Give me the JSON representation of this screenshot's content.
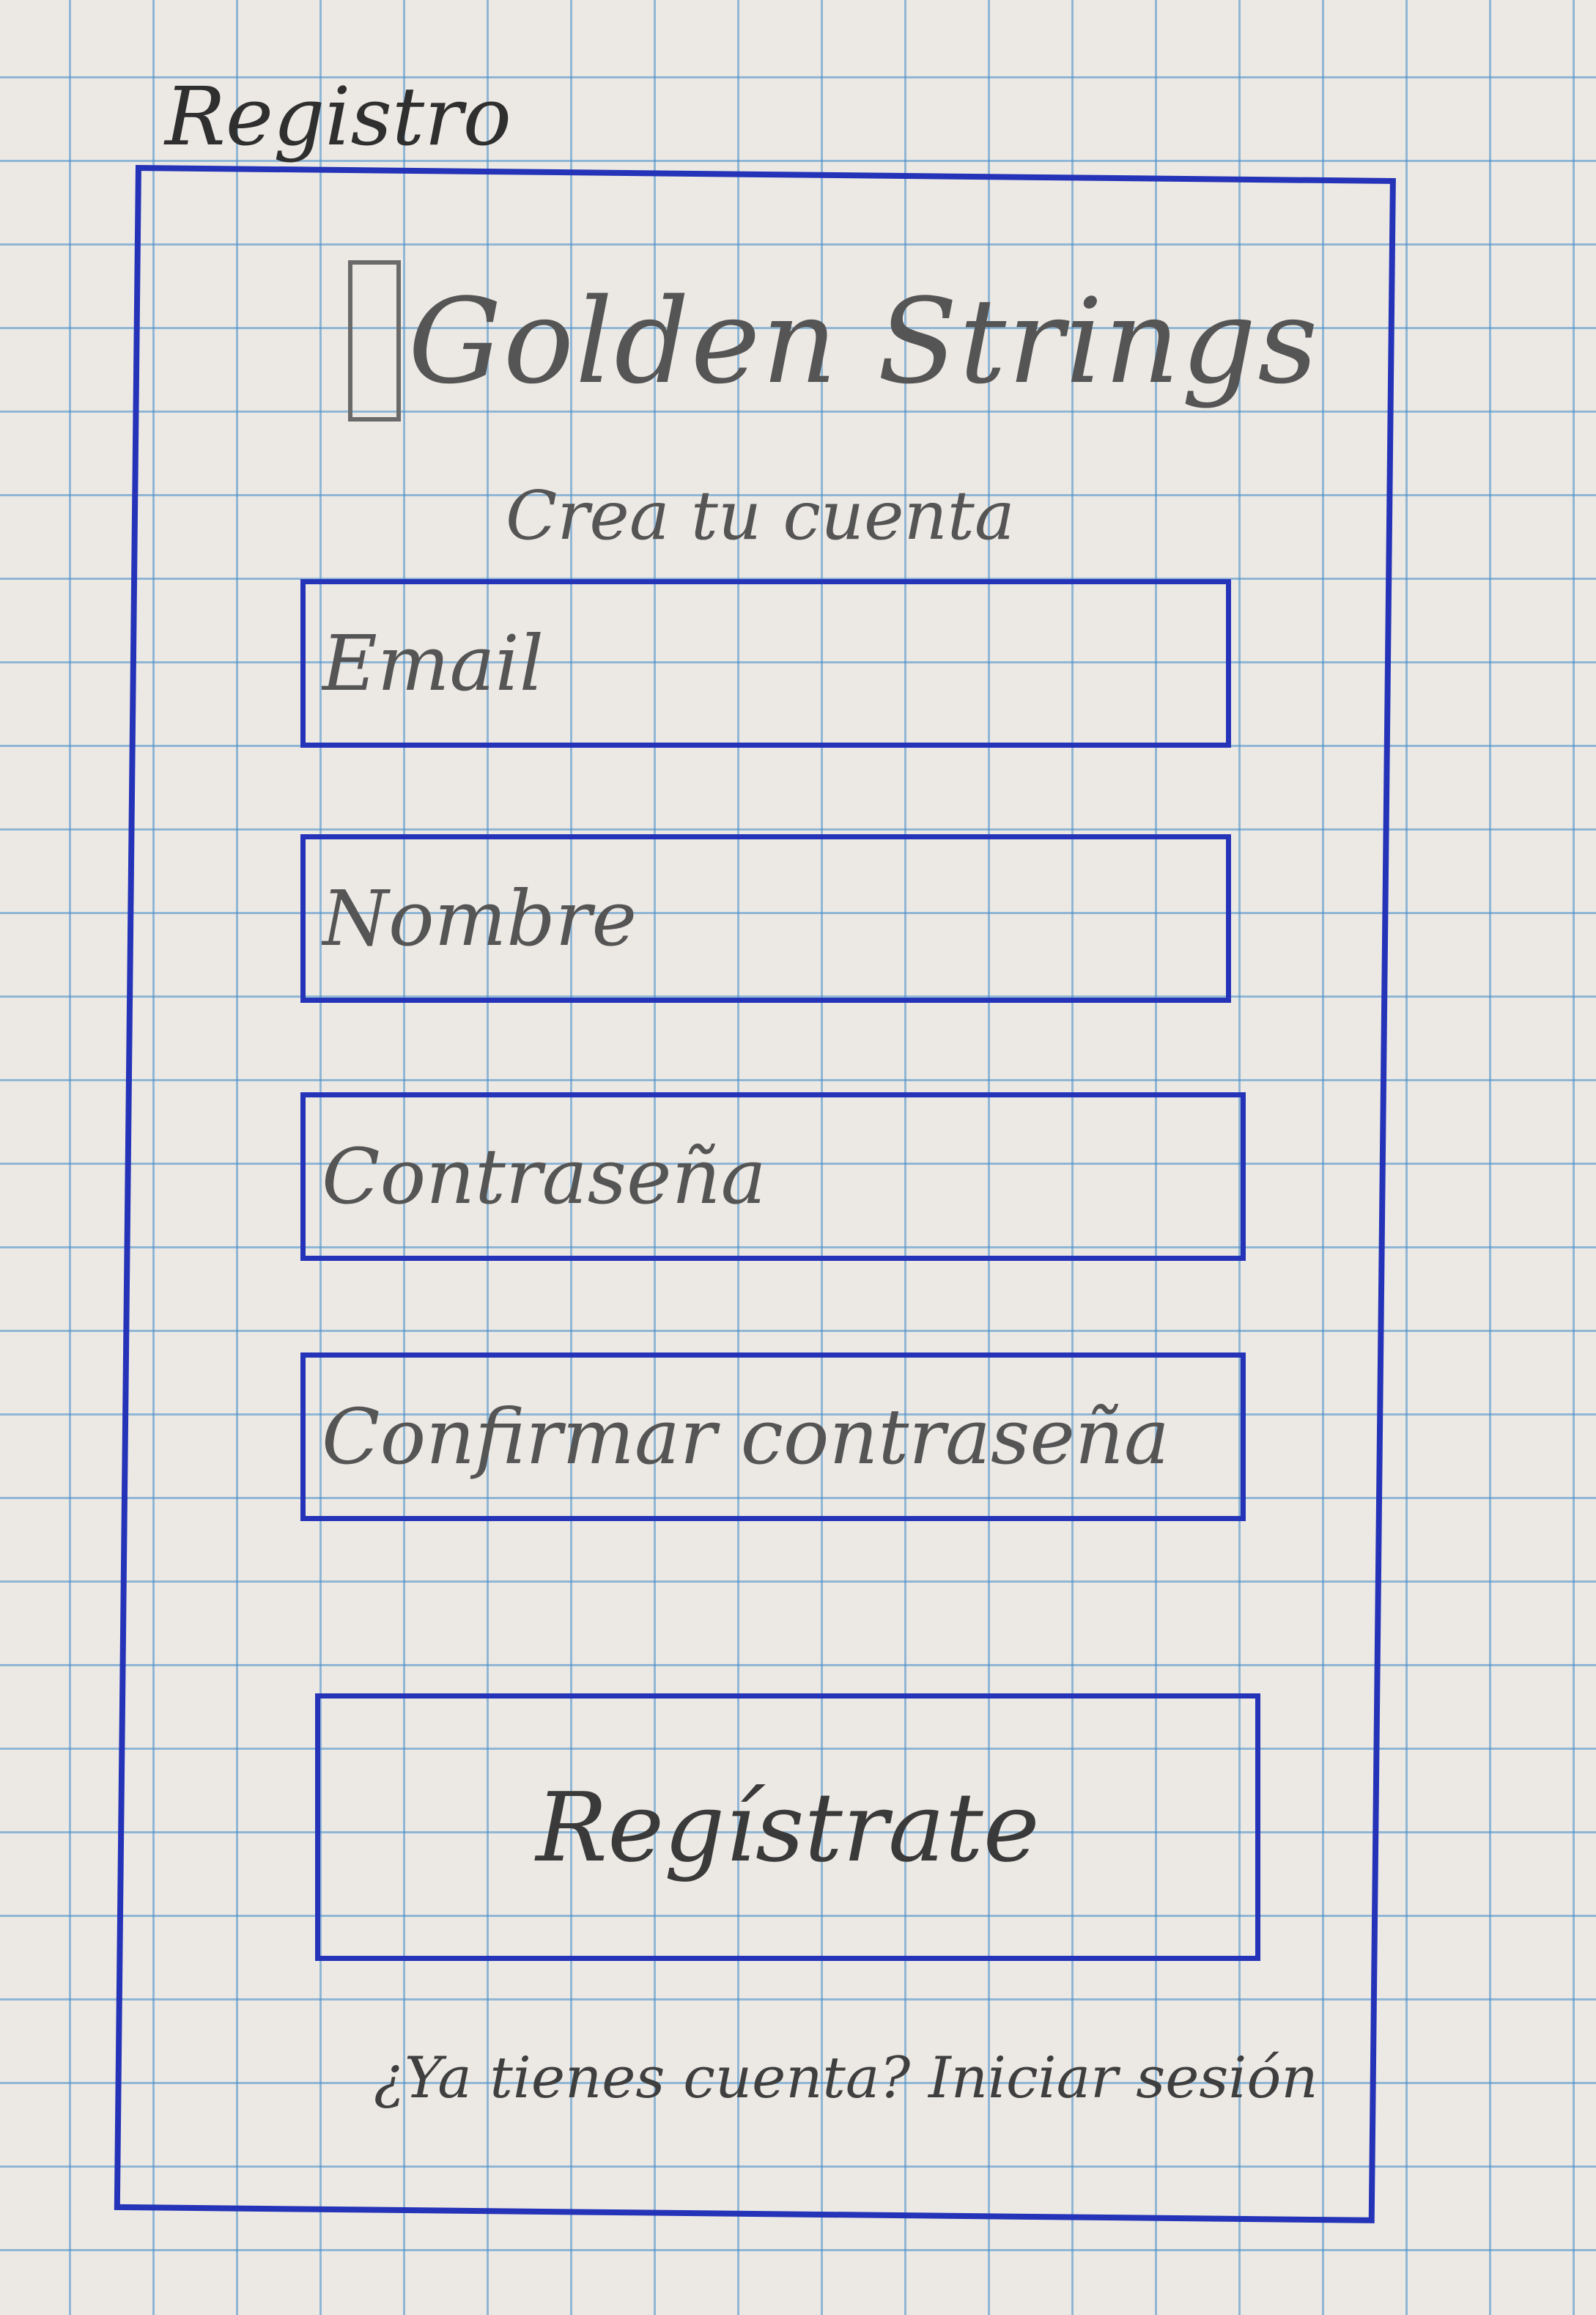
{
  "screen": {
    "title": "Registro"
  },
  "brand": {
    "name": "Golden Strings"
  },
  "form": {
    "heading": "Crea tu cuenta",
    "fields": {
      "email_placeholder": "Email",
      "name_placeholder": "Nombre",
      "password_placeholder": "Contraseña",
      "confirm_placeholder": "Confirmar contraseña"
    },
    "submit_label": "Regístrate"
  },
  "footer": {
    "prompt": "¿Ya tienes cuenta?",
    "login_link": "Iniciar sesión"
  },
  "colors": {
    "ink": "#2433b8",
    "pencil": "#555555"
  }
}
